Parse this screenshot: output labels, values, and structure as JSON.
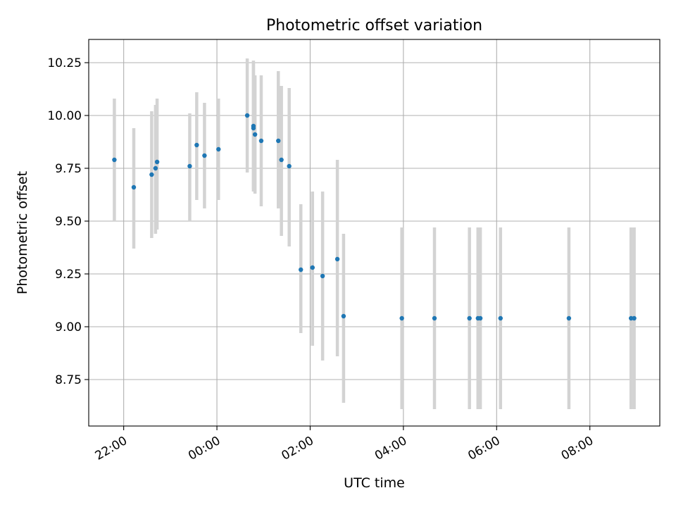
{
  "chart_data": {
    "type": "scatter",
    "title": "Photometric offset variation",
    "xlabel": "UTC time",
    "ylabel": "Photometric offset",
    "xlim": [
      "21:15",
      "09:30"
    ],
    "ylim": [
      8.53,
      10.36
    ],
    "xticks": [
      "22:00",
      "00:00",
      "02:00",
      "04:00",
      "06:00",
      "08:00"
    ],
    "yticks": [
      "8.75",
      "9.00",
      "9.25",
      "9.50",
      "9.75",
      "10.00",
      "10.25"
    ],
    "grid": true,
    "series": [
      {
        "points": [
          {
            "x": "21:48",
            "y": 9.79,
            "ylow": 9.5,
            "yhigh": 10.08
          },
          {
            "x": "22:13",
            "y": 9.66,
            "ylow": 9.37,
            "yhigh": 9.94
          },
          {
            "x": "22:36",
            "y": 9.72,
            "ylow": 9.42,
            "yhigh": 10.02
          },
          {
            "x": "22:41",
            "y": 9.75,
            "ylow": 9.44,
            "yhigh": 10.05
          },
          {
            "x": "22:43",
            "y": 9.78,
            "ylow": 9.46,
            "yhigh": 10.08
          },
          {
            "x": "23:25",
            "y": 9.76,
            "ylow": 9.5,
            "yhigh": 10.01
          },
          {
            "x": "23:34",
            "y": 9.86,
            "ylow": 9.6,
            "yhigh": 10.11
          },
          {
            "x": "23:44",
            "y": 9.81,
            "ylow": 9.56,
            "yhigh": 10.06
          },
          {
            "x": "00:02",
            "y": 9.84,
            "ylow": 9.6,
            "yhigh": 10.08
          },
          {
            "x": "00:39",
            "y": 10.0,
            "ylow": 9.73,
            "yhigh": 10.27
          },
          {
            "x": "00:47",
            "y": 9.95,
            "ylow": 9.65,
            "yhigh": 10.26
          },
          {
            "x": "00:47",
            "y": 9.94,
            "ylow": 9.64,
            "yhigh": 10.25
          },
          {
            "x": "00:49",
            "y": 9.91,
            "ylow": 9.63,
            "yhigh": 10.19
          },
          {
            "x": "00:57",
            "y": 9.88,
            "ylow": 9.57,
            "yhigh": 10.19
          },
          {
            "x": "01:19",
            "y": 9.88,
            "ylow": 9.56,
            "yhigh": 10.21
          },
          {
            "x": "01:23",
            "y": 9.79,
            "ylow": 9.43,
            "yhigh": 10.14
          },
          {
            "x": "01:33",
            "y": 9.76,
            "ylow": 9.38,
            "yhigh": 10.13
          },
          {
            "x": "01:48",
            "y": 9.27,
            "ylow": 8.97,
            "yhigh": 9.58
          },
          {
            "x": "02:03",
            "y": 9.28,
            "ylow": 8.91,
            "yhigh": 9.64
          },
          {
            "x": "02:16",
            "y": 9.24,
            "ylow": 8.84,
            "yhigh": 9.64
          },
          {
            "x": "02:35",
            "y": 9.32,
            "ylow": 8.86,
            "yhigh": 9.79
          },
          {
            "x": "02:43",
            "y": 9.05,
            "ylow": 8.64,
            "yhigh": 9.44
          },
          {
            "x": "03:58",
            "y": 9.04,
            "ylow": 8.61,
            "yhigh": 9.47
          },
          {
            "x": "04:40",
            "y": 9.04,
            "ylow": 8.61,
            "yhigh": 9.47
          },
          {
            "x": "05:25",
            "y": 9.04,
            "ylow": 8.61,
            "yhigh": 9.47
          },
          {
            "x": "05:36",
            "y": 9.04,
            "ylow": 8.61,
            "yhigh": 9.47
          },
          {
            "x": "05:39",
            "y": 9.04,
            "ylow": 8.61,
            "yhigh": 9.47
          },
          {
            "x": "06:05",
            "y": 9.04,
            "ylow": 8.61,
            "yhigh": 9.47
          },
          {
            "x": "07:33",
            "y": 9.04,
            "ylow": 8.61,
            "yhigh": 9.47
          },
          {
            "x": "08:53",
            "y": 9.04,
            "ylow": 8.61,
            "yhigh": 9.47
          },
          {
            "x": "08:57",
            "y": 9.04,
            "ylow": 8.61,
            "yhigh": 9.47
          }
        ]
      }
    ],
    "colors": {
      "points": "#1f77b4",
      "errorbars": "#d3d3d3",
      "grid": "#b0b0b0",
      "axes": "#000000"
    }
  }
}
